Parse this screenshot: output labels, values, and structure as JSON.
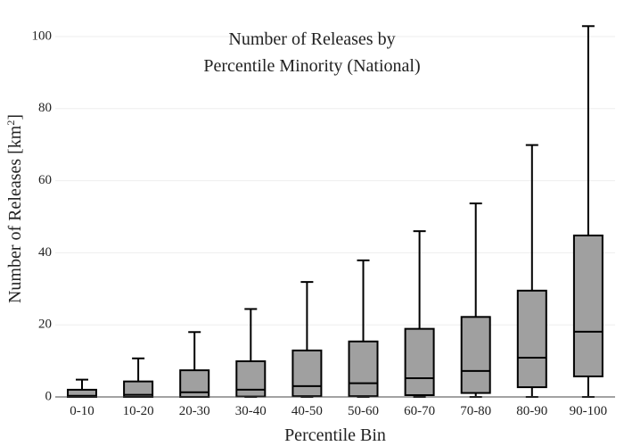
{
  "chart_data": {
    "type": "box",
    "title_lines": [
      "Number of Releases by",
      "Percentile Minority (National)"
    ],
    "xlabel": "Percentile Bin",
    "ylabel": {
      "main": "Number of Releases  [km",
      "sup": "2",
      "close": "]"
    },
    "ylim": [
      0,
      105
    ],
    "yticks": [
      0,
      20,
      40,
      60,
      80,
      100
    ],
    "grid": true,
    "categories": [
      "0-10",
      "10-20",
      "20-30",
      "30-40",
      "40-50",
      "50-60",
      "60-70",
      "70-80",
      "80-90",
      "90-100"
    ],
    "boxes": [
      {
        "min": 0,
        "q1": 0,
        "median": 0.3,
        "q3": 2,
        "max": 4.8
      },
      {
        "min": 0,
        "q1": 0,
        "median": 0.6,
        "q3": 4.3,
        "max": 10.7
      },
      {
        "min": 0,
        "q1": 0,
        "median": 1.3,
        "q3": 7.4,
        "max": 18
      },
      {
        "min": 0,
        "q1": 0.1,
        "median": 2,
        "q3": 9.9,
        "max": 24.4
      },
      {
        "min": 0,
        "q1": 0.2,
        "median": 3,
        "q3": 12.9,
        "max": 31.9
      },
      {
        "min": 0,
        "q1": 0.2,
        "median": 3.8,
        "q3": 15.4,
        "max": 37.9
      },
      {
        "min": 0,
        "q1": 0.5,
        "median": 5.2,
        "q3": 18.9,
        "max": 46
      },
      {
        "min": 0,
        "q1": 1.1,
        "median": 7.2,
        "q3": 22.2,
        "max": 53.7
      },
      {
        "min": 0,
        "q1": 2.7,
        "median": 10.9,
        "q3": 29.5,
        "max": 69.9
      },
      {
        "min": 0,
        "q1": 5.7,
        "median": 18.1,
        "q3": 44.8,
        "max": 102.9
      }
    ],
    "box_fill": "#a0a0a0",
    "stroke_color": "#000000",
    "grid_color": "#eeeeee"
  }
}
